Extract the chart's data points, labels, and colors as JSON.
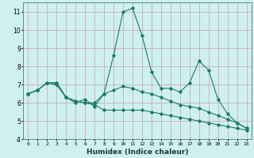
{
  "xlabel": "Humidex (Indice chaleur)",
  "ylabel": "",
  "bg_color": "#cff0f0",
  "grid_color": "#c8a0a0",
  "line_color": "#1a7a6a",
  "x_values": [
    0,
    1,
    2,
    3,
    4,
    5,
    6,
    7,
    8,
    9,
    10,
    11,
    12,
    13,
    14,
    15,
    16,
    17,
    18,
    19,
    20,
    21,
    22,
    23
  ],
  "line1": [
    6.5,
    6.7,
    7.1,
    7.1,
    6.3,
    6.1,
    6.0,
    5.9,
    5.6,
    5.6,
    5.6,
    5.6,
    5.6,
    5.5,
    5.4,
    5.3,
    5.2,
    5.1,
    5.0,
    4.9,
    4.8,
    4.7,
    4.6,
    4.5
  ],
  "line2": [
    6.5,
    6.7,
    7.1,
    7.1,
    6.3,
    6.1,
    6.0,
    6.0,
    6.5,
    8.6,
    11.0,
    11.2,
    9.7,
    7.7,
    6.8,
    6.8,
    6.6,
    7.1,
    8.3,
    7.8,
    6.2,
    5.4,
    4.9,
    4.6
  ],
  "line3": [
    6.5,
    6.7,
    7.1,
    7.0,
    6.3,
    6.0,
    6.2,
    5.8,
    6.5,
    6.7,
    6.9,
    6.8,
    6.6,
    6.5,
    6.3,
    6.1,
    5.9,
    5.8,
    5.7,
    5.5,
    5.3,
    5.1,
    4.9,
    4.6
  ],
  "ylim": [
    4,
    11.5
  ],
  "yticks": [
    4,
    5,
    6,
    7,
    8,
    9,
    10,
    11
  ],
  "xlim": [
    -0.5,
    23.5
  ],
  "xtick_labels": [
    "0",
    "1",
    "2",
    "3",
    "4",
    "5",
    "6",
    "7",
    "8",
    "9",
    "10",
    "11",
    "12",
    "13",
    "14",
    "15",
    "16",
    "17",
    "18",
    "19",
    "20",
    "21",
    "22",
    "23"
  ]
}
